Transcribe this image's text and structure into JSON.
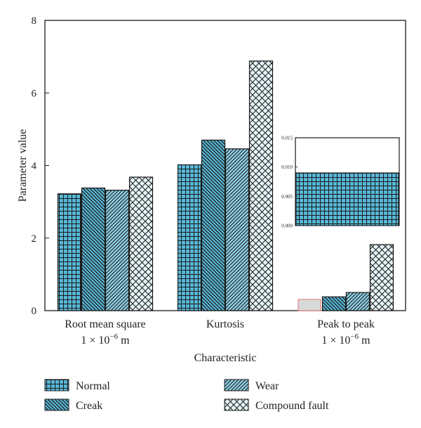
{
  "chart_data": {
    "type": "bar",
    "xlabel": "Characteristic",
    "ylabel": "Parameter value",
    "ylim": [
      0,
      8
    ],
    "yticks": [
      "0",
      "2",
      "4",
      "6",
      "8"
    ],
    "categories": [
      {
        "line1": "Root mean square",
        "line2_base": "1 × 10",
        "line2_exp": "−6",
        "line2_unit": " m"
      },
      {
        "line1": "Kurtosis",
        "line2_base": "",
        "line2_exp": "",
        "line2_unit": ""
      },
      {
        "line1": "Peak to peak",
        "line2_base": "1 × 10",
        "line2_exp": "−6",
        "line2_unit": " m"
      }
    ],
    "series": [
      {
        "name": "Normal",
        "pattern": "grid",
        "values": [
          3.22,
          4.02,
          0.009
        ]
      },
      {
        "name": "Creak",
        "pattern": "backslash",
        "values": [
          3.38,
          4.7,
          0.38
        ]
      },
      {
        "name": "Wear",
        "pattern": "slash",
        "values": [
          3.32,
          4.46,
          0.5
        ]
      },
      {
        "name": "Compound fault",
        "pattern": "crosshatch",
        "values": [
          3.68,
          6.88,
          1.82
        ]
      }
    ],
    "inset": {
      "ylim": [
        0,
        0.015
      ],
      "yticks": [
        "0.000",
        "0.005",
        "0.010",
        "0.015"
      ],
      "series": "Normal",
      "value": 0.009
    },
    "colors": {
      "fill": "#58b8d8",
      "light": "#d6ecf3",
      "line": "#1a1a1a",
      "highlight": "#e07070"
    },
    "legend_position": "bottom"
  }
}
